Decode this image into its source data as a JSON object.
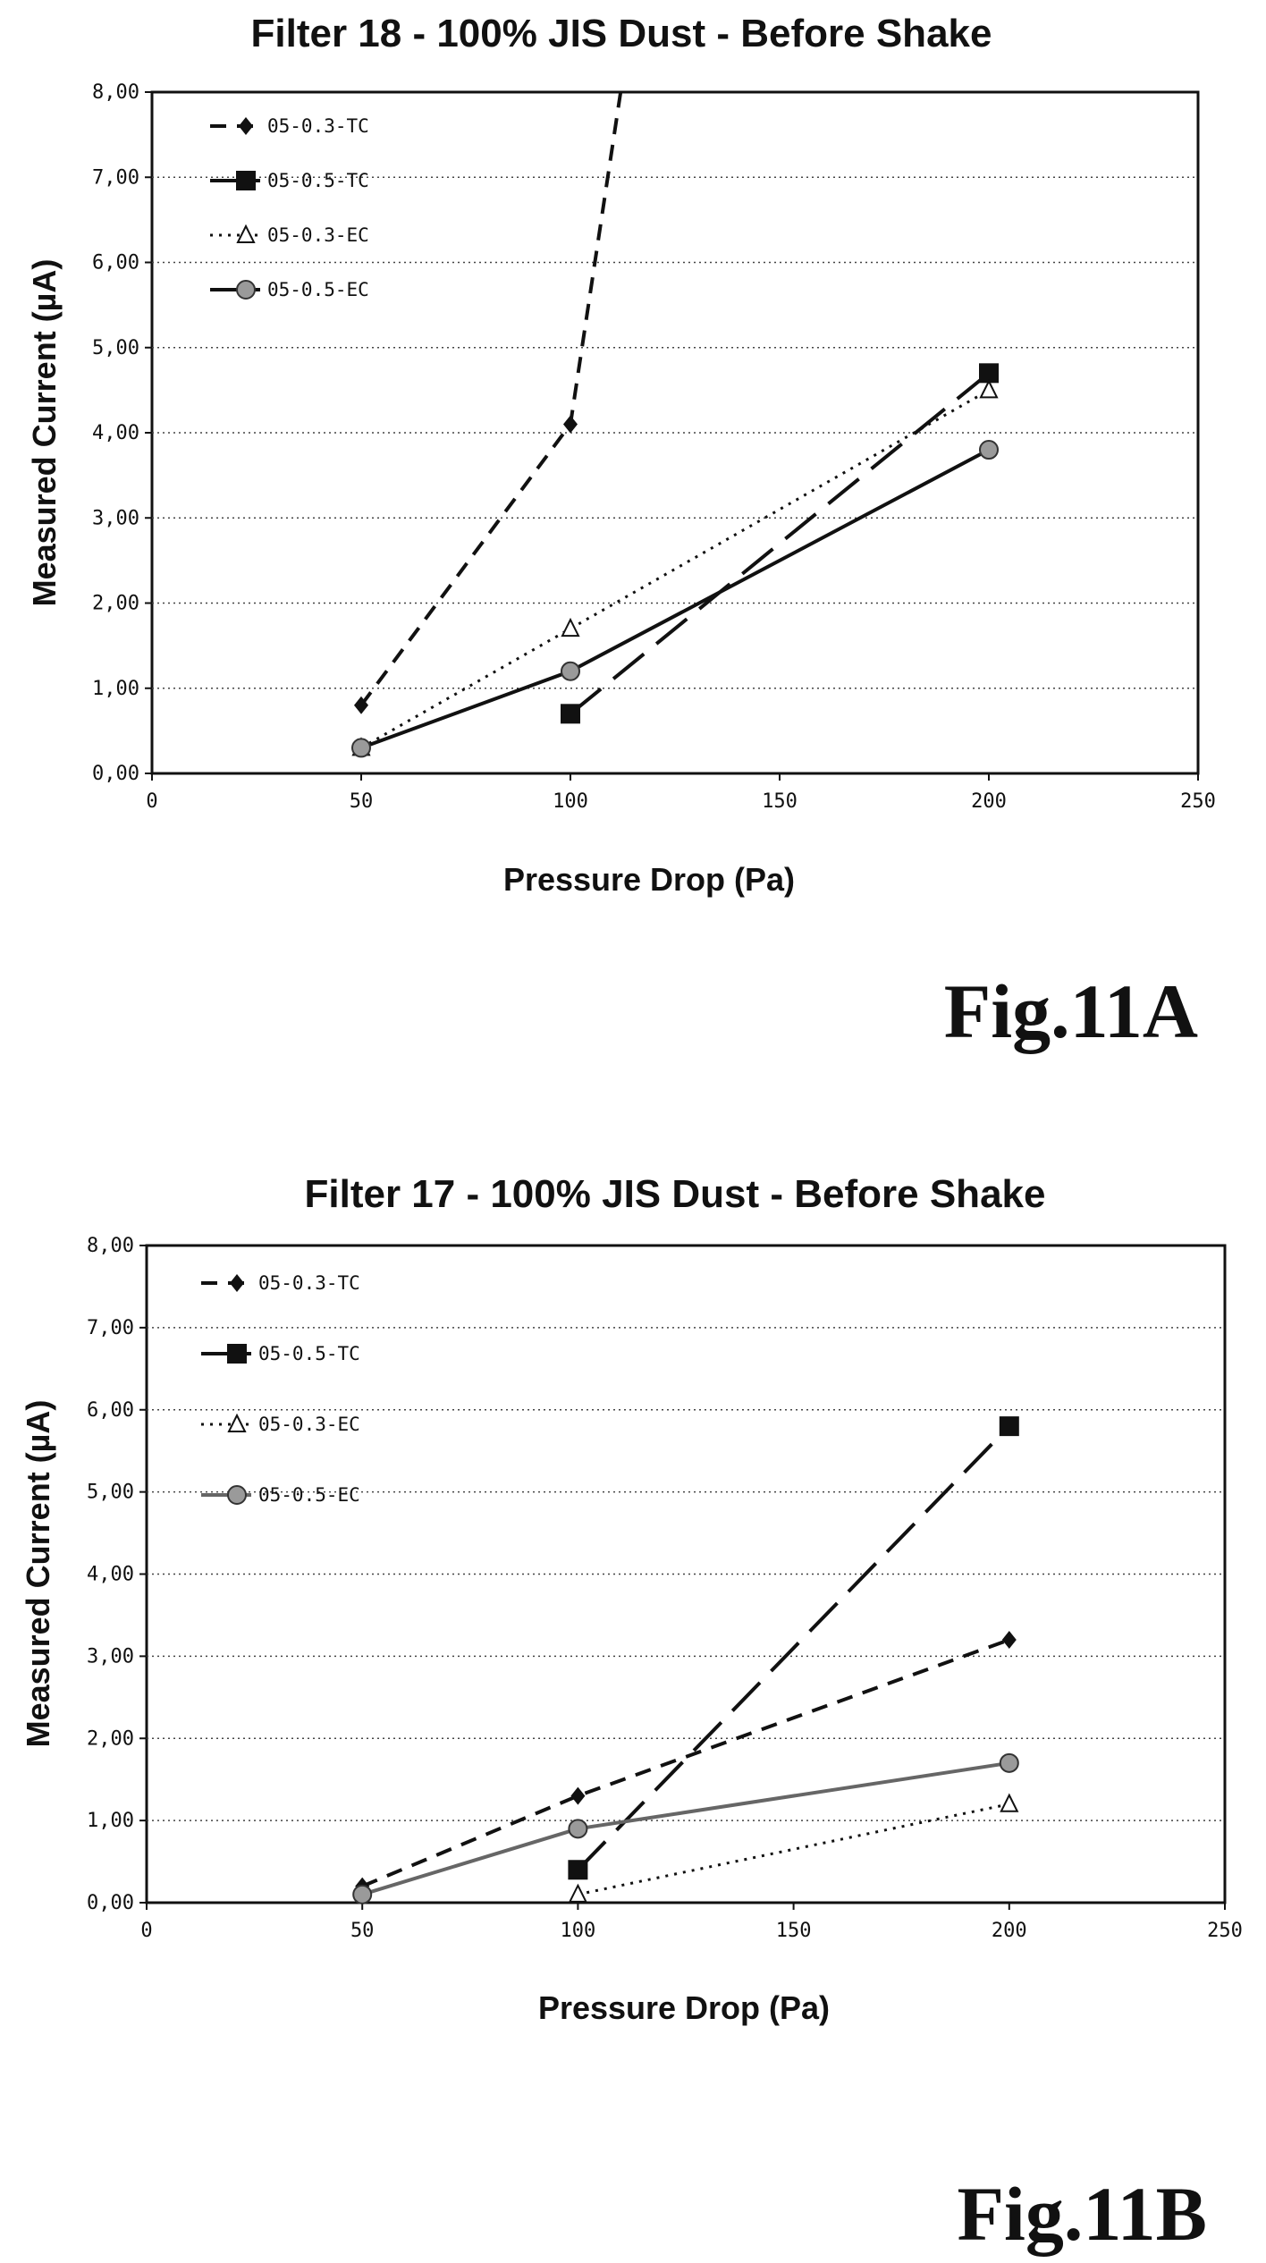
{
  "chart_data": [
    {
      "type": "line",
      "title": "Filter 18 - 100%  JIS Dust - Before Shake",
      "xlabel": "Pressure Drop (Pa)",
      "ylabel": "Measured Current (µA)",
      "xlim": [
        0,
        250
      ],
      "ylim": [
        0,
        8
      ],
      "x_ticks": [
        "0",
        "50",
        "100",
        "150",
        "200",
        "250"
      ],
      "y_ticks": [
        "0,00",
        "1,00",
        "2,00",
        "3,00",
        "4,00",
        "5,00",
        "6,00",
        "7,00",
        "8,00"
      ],
      "grid": "horizontal dotted",
      "legend_position": "top-left",
      "figure_label": "Fig.11A",
      "series": [
        {
          "name": "05-0.3-TC",
          "style": "dashed",
          "marker": "diamond",
          "x": [
            50,
            100,
            112
          ],
          "y": [
            0.8,
            4.1,
            8.0
          ]
        },
        {
          "name": "05-0.5-TC",
          "style": "longdash",
          "marker": "square",
          "x": [
            100,
            200
          ],
          "y": [
            0.7,
            4.7
          ]
        },
        {
          "name": "05-0.3-EC",
          "style": "dotted",
          "marker": "triangle",
          "x": [
            50,
            100,
            200
          ],
          "y": [
            0.3,
            1.7,
            4.5
          ]
        },
        {
          "name": "05-0.5-EC",
          "style": "solid",
          "marker": "circle",
          "x": [
            50,
            100,
            200
          ],
          "y": [
            0.3,
            1.2,
            3.8
          ]
        }
      ]
    },
    {
      "type": "line",
      "title": "Filter 17 - 100%  JIS Dust - Before Shake",
      "xlabel": "Pressure Drop (Pa)",
      "ylabel": "Measured Current (µA)",
      "xlim": [
        0,
        250
      ],
      "ylim": [
        0,
        8
      ],
      "x_ticks": [
        "0",
        "50",
        "100",
        "150",
        "200",
        "250"
      ],
      "y_ticks": [
        "0,00",
        "1,00",
        "2,00",
        "3,00",
        "4,00",
        "5,00",
        "6,00",
        "7,00",
        "8,00"
      ],
      "grid": "horizontal dotted",
      "legend_position": "top-left",
      "figure_label": "Fig.11B",
      "series": [
        {
          "name": "05-0.3-TC",
          "style": "dashed",
          "marker": "diamond",
          "x": [
            50,
            100,
            200
          ],
          "y": [
            0.2,
            1.3,
            3.2
          ]
        },
        {
          "name": "05-0.5-TC",
          "style": "longdash",
          "marker": "square",
          "x": [
            100,
            200
          ],
          "y": [
            0.4,
            5.8
          ]
        },
        {
          "name": "05-0.3-EC",
          "style": "dotted",
          "marker": "triangle",
          "x": [
            100,
            200
          ],
          "y": [
            0.1,
            1.2
          ]
        },
        {
          "name": "05-0.5-EC",
          "style": "solid",
          "marker": "circle",
          "x": [
            50,
            100,
            200
          ],
          "y": [
            0.1,
            0.9,
            1.7
          ]
        }
      ]
    }
  ]
}
